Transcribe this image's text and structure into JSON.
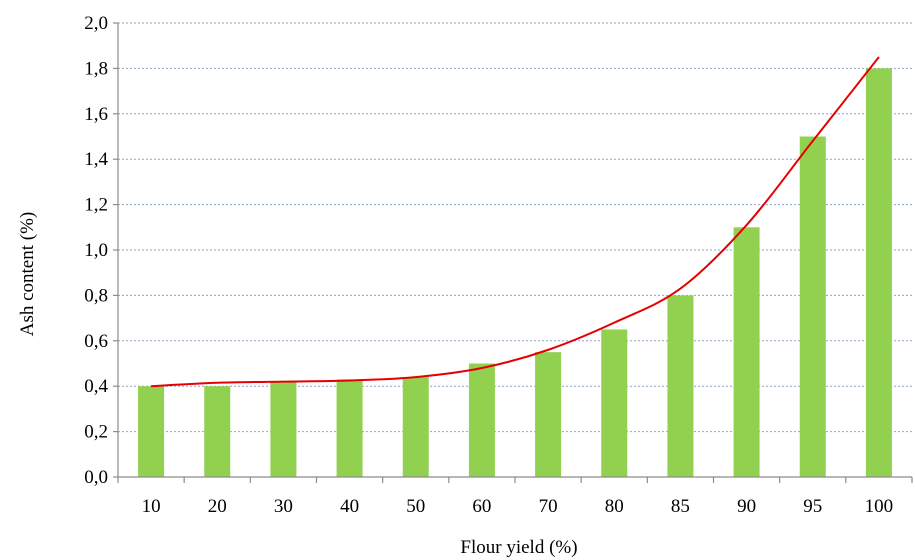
{
  "chart_data": {
    "type": "bar",
    "categories": [
      "10",
      "20",
      "30",
      "40",
      "50",
      "60",
      "70",
      "80",
      "85",
      "90",
      "95",
      "100"
    ],
    "values": [
      0.4,
      0.4,
      0.42,
      0.43,
      0.44,
      0.5,
      0.55,
      0.65,
      0.8,
      1.1,
      1.5,
      1.8
    ],
    "trendline": {
      "type": "polynomial",
      "color": "#e60000",
      "values": [
        0.4,
        0.415,
        0.42,
        0.425,
        0.44,
        0.48,
        0.56,
        0.68,
        0.83,
        1.11,
        1.48,
        1.85
      ]
    },
    "title": "",
    "xlabel": "Flour yield (%)",
    "ylabel": "Ash content (%)",
    "ylim": [
      0,
      2.0
    ],
    "yticks": [
      "0,0",
      "0,2",
      "0,4",
      "0,6",
      "0,8",
      "1,0",
      "1,2",
      "1,4",
      "1,6",
      "1,8",
      "2,0"
    ],
    "ytick_values": [
      0,
      0.2,
      0.4,
      0.6,
      0.8,
      1.0,
      1.2,
      1.4,
      1.6,
      1.8,
      2.0
    ],
    "grid": true,
    "legend": false,
    "bar_color": "#92d050"
  }
}
